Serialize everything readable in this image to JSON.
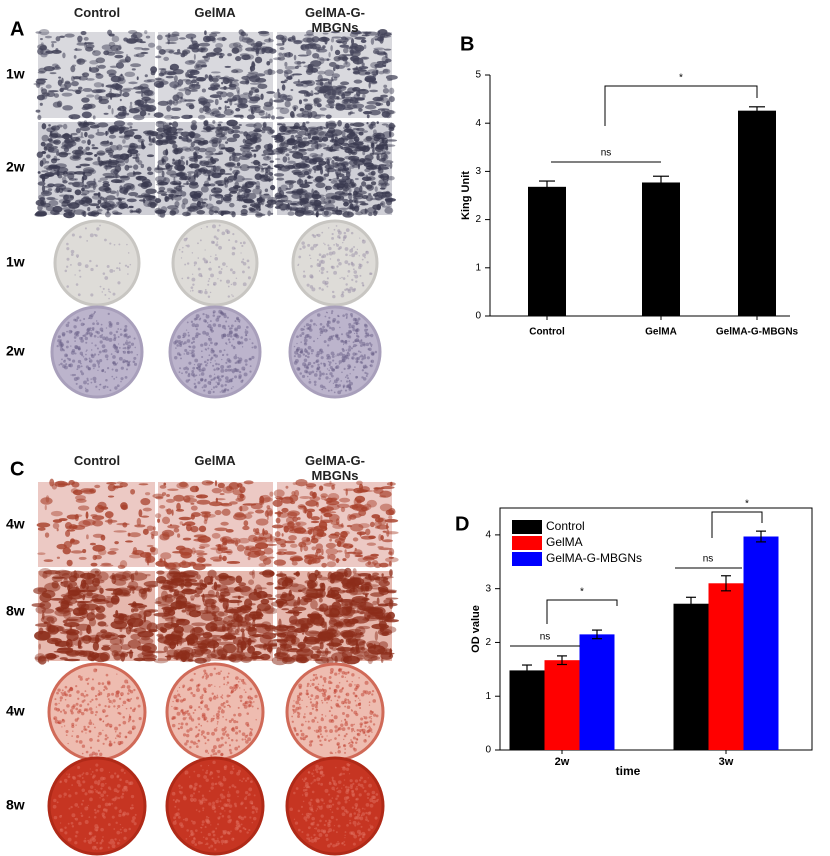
{
  "panel_labels": [
    "A",
    "B",
    "C",
    "D"
  ],
  "stain_grids": [
    {
      "columns": [
        "Control",
        "GelMA",
        "GelMA-G-MBGNs"
      ],
      "rows": [
        "1w",
        "2w",
        "1w",
        "2w"
      ]
    },
    {
      "columns": [
        "Control",
        "GelMA",
        "GelMA-G-MBGNs"
      ],
      "rows": [
        "4w",
        "8w",
        "4w",
        "8w"
      ]
    }
  ],
  "chart_data": [
    {
      "type": "bar",
      "ylabel": "King Unit",
      "categories": [
        "Control",
        "GelMA",
        "GelMA-G-MBGNs"
      ],
      "values": [
        2.68,
        2.77,
        4.26
      ],
      "errors": [
        0.12,
        0.13,
        0.08
      ],
      "color": "#000000",
      "ylim": [
        0,
        5
      ],
      "yticks": [
        0,
        1,
        2,
        3,
        4,
        5
      ],
      "annotations": [
        "ns",
        "*"
      ]
    },
    {
      "type": "grouped_bar",
      "xlabel": "time",
      "ylabel": "OD value",
      "categories": [
        "2w",
        "3w"
      ],
      "series": [
        {
          "name": "Control",
          "color": "#000000",
          "values": [
            1.48,
            2.72
          ],
          "errors": [
            0.1,
            0.12
          ]
        },
        {
          "name": "GelMA",
          "color": "#ff0000",
          "values": [
            1.67,
            3.1
          ],
          "errors": [
            0.08,
            0.14
          ]
        },
        {
          "name": "GelMA-G-MBGNs",
          "color": "#0000ff",
          "values": [
            2.15,
            3.97
          ],
          "errors": [
            0.08,
            0.1
          ]
        }
      ],
      "ylim": [
        0,
        4.5
      ],
      "yticks": [
        0,
        1,
        2,
        3,
        4
      ],
      "legend": "upper left",
      "annotations": [
        "ns",
        "*",
        "ns",
        "*"
      ]
    }
  ]
}
